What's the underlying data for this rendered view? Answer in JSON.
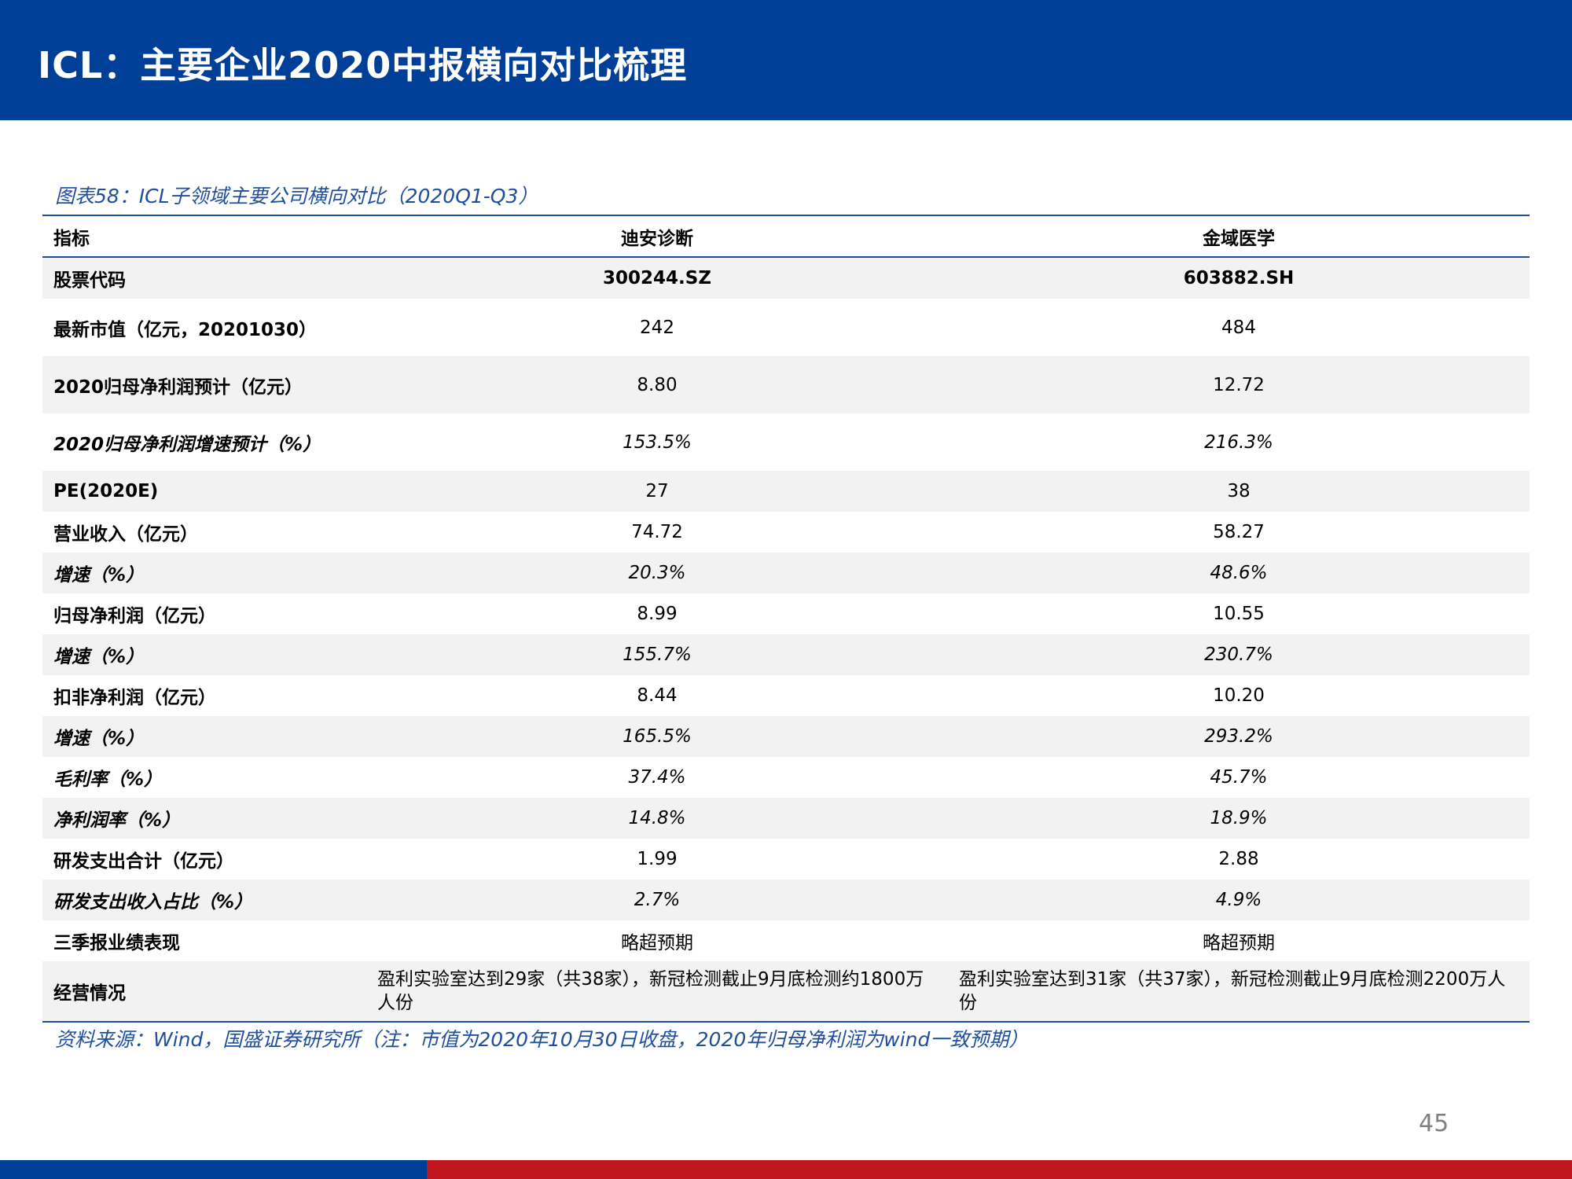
{
  "header": {
    "title": "ICL：主要企业2020中报横向对比梳理"
  },
  "caption": "图表58：ICL子领域主要公司横向对比（2020Q1-Q3）",
  "table": {
    "headers": [
      "指标",
      "迪安诊断",
      "金域医学"
    ],
    "rows": [
      {
        "label": "股票代码",
        "a": "300244.SZ",
        "b": "603882.SH"
      },
      {
        "label": "最新市值（亿元，20201030）",
        "a": "242",
        "b": "484"
      },
      {
        "label": "2020归母净利润预计（亿元）",
        "a": "8.80",
        "b": "12.72"
      },
      {
        "label": "2020归母净利润增速预计（%）",
        "a": "153.5%",
        "b": "216.3%"
      },
      {
        "label": "PE(2020E)",
        "a": "27",
        "b": "38"
      },
      {
        "label": "营业收入（亿元）",
        "a": "74.72",
        "b": "58.27"
      },
      {
        "label": "增速（%）",
        "a": "20.3%",
        "b": "48.6%"
      },
      {
        "label": "归母净利润（亿元）",
        "a": "8.99",
        "b": "10.55"
      },
      {
        "label": "增速（%）",
        "a": "155.7%",
        "b": "230.7%"
      },
      {
        "label": "扣非净利润（亿元）",
        "a": "8.44",
        "b": "10.20"
      },
      {
        "label": "增速（%）",
        "a": "165.5%",
        "b": "293.2%"
      },
      {
        "label": "毛利率（%）",
        "a": "37.4%",
        "b": "45.7%"
      },
      {
        "label": "净利润率（%）",
        "a": "14.8%",
        "b": "18.9%"
      },
      {
        "label": "研发支出合计（亿元）",
        "a": "1.99",
        "b": "2.88"
      },
      {
        "label": "研发支出收入占比（%）",
        "a": "2.7%",
        "b": "4.9%"
      },
      {
        "label": "三季报业绩表现",
        "a": "略超预期",
        "b": "略超预期"
      },
      {
        "label": "经营情况",
        "a": "盈利实验室达到29家（共38家），新冠检测截止9月底检测约1800万人份",
        "b": "盈利实验室达到31家（共37家），新冠检测截止9月底检测2200万人份"
      }
    ]
  },
  "source": "资料来源：Wind，国盛证券研究所（注：市值为2020年10月30日收盘，2020年归母净利润为wind一致预期）",
  "page_number": "45",
  "colors": {
    "brand_blue": "#003f98",
    "accent_red": "#c0171e",
    "caption_blue": "#1f4e9c"
  }
}
